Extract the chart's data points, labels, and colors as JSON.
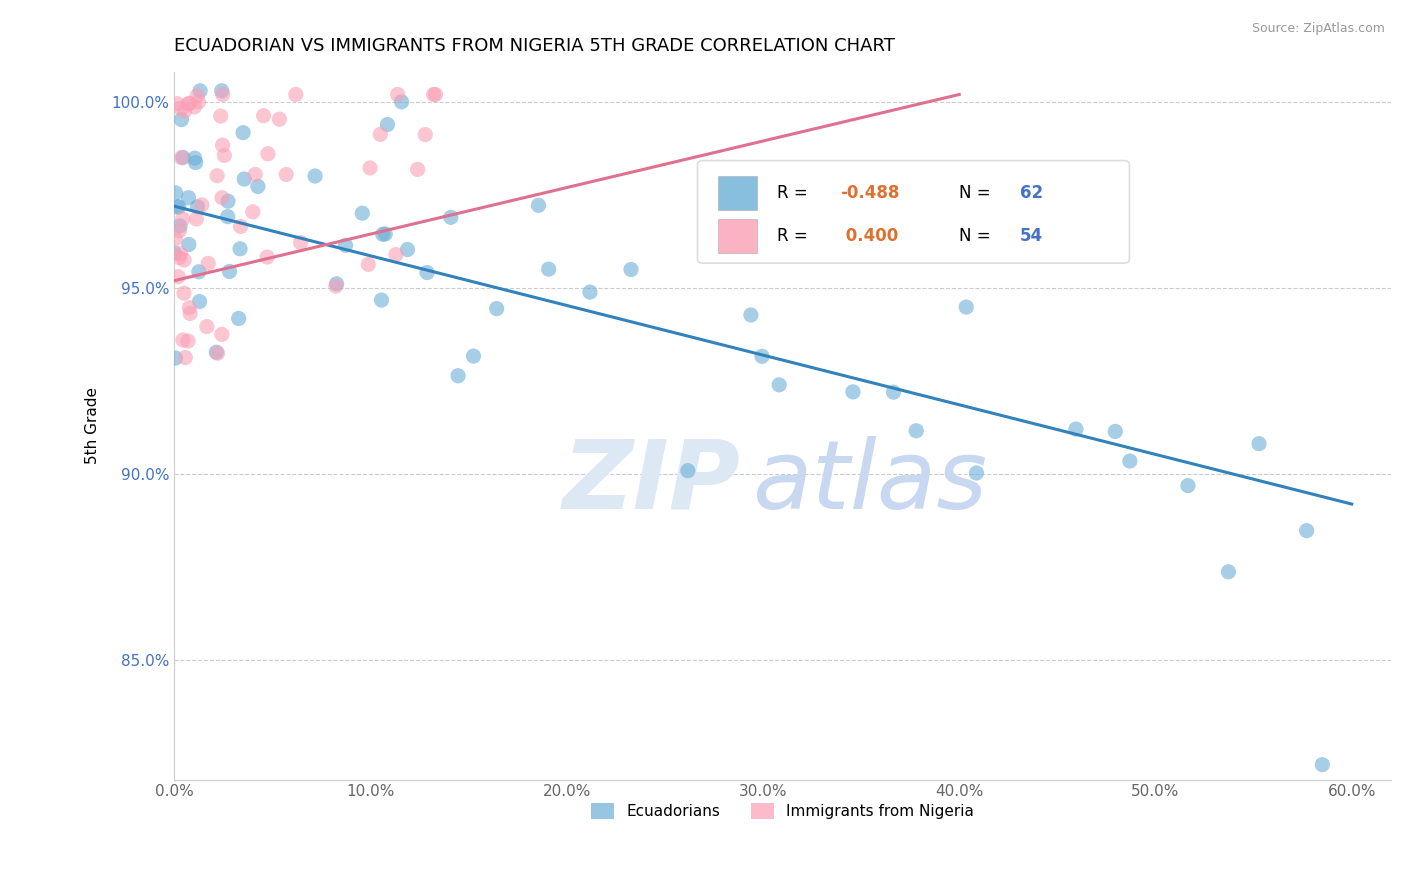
{
  "title": "ECUADORIAN VS IMMIGRANTS FROM NIGERIA 5TH GRADE CORRELATION CHART",
  "source": "Source: ZipAtlas.com",
  "ylabel": "5th Grade",
  "xlim": [
    0.0,
    0.62
  ],
  "ylim": [
    0.818,
    1.008
  ],
  "xticks": [
    0.0,
    0.1,
    0.2,
    0.3,
    0.4,
    0.5,
    0.6
  ],
  "xticklabels": [
    "0.0%",
    "10.0%",
    "20.0%",
    "30.0%",
    "40.0%",
    "50.0%",
    "60.0%"
  ],
  "yticks": [
    0.85,
    0.9,
    0.95,
    1.0
  ],
  "yticklabels": [
    "85.0%",
    "90.0%",
    "95.0%",
    "100.0%"
  ],
  "blue_color": "#6baed6",
  "pink_color": "#fa9fb5",
  "blue_N": 62,
  "pink_N": 54,
  "legend_label_blue": "Ecuadorians",
  "legend_label_pink": "Immigrants from Nigeria",
  "blue_line_x": [
    0.0,
    0.6
  ],
  "blue_line_y": [
    0.972,
    0.892
  ],
  "pink_line_x": [
    0.0,
    0.4
  ],
  "pink_line_y": [
    0.952,
    1.002
  ],
  "blue_line_color": "#3182bd",
  "pink_line_color": "#e07090",
  "tick_color_y": "#4472c4",
  "tick_color_x": "#666666",
  "legend_val_color": "#e07030",
  "legend_N_color": "#4472c4",
  "scatter_alpha": 0.6,
  "scatter_size": 120
}
